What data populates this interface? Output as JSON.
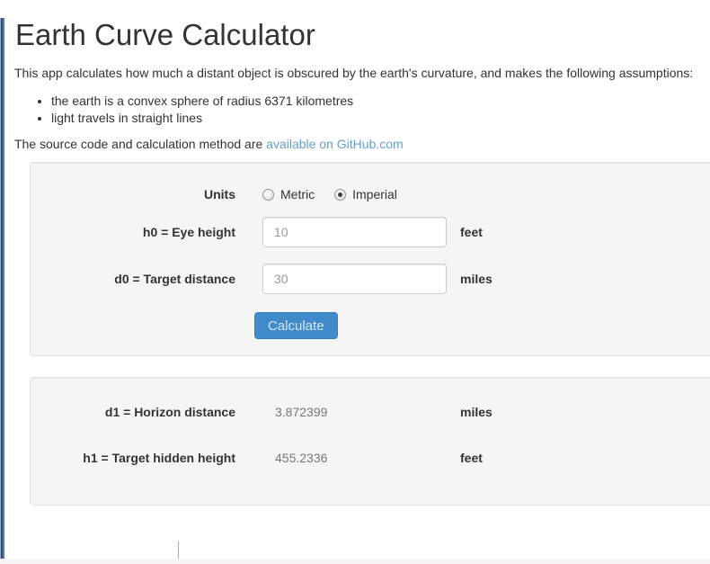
{
  "page": {
    "title": "Earth Curve Calculator",
    "intro": "This app calculates how much a distant object is obscured by the earth's curvature, and makes the following assumptions:",
    "assumptions": [
      "the earth is a convex sphere of radius 6371 kilometres",
      "light travels in straight lines"
    ],
    "source_text": "The source code and calculation method are",
    "source_link": "available on GitHub.com"
  },
  "form": {
    "units": {
      "label": "Units",
      "options": [
        {
          "label": "Metric",
          "selected": false
        },
        {
          "label": "Imperial",
          "selected": true
        }
      ]
    },
    "fields": [
      {
        "label": "h0 = Eye height",
        "value": "10",
        "unit": "feet"
      },
      {
        "label": "d0 = Target distance",
        "value": "30",
        "unit": "miles"
      }
    ],
    "submit_label": "Calculate"
  },
  "results": {
    "rows": [
      {
        "label": "d1 = Horizon distance",
        "value": "3.872399",
        "unit": "miles"
      },
      {
        "label": "h1 = Target hidden height",
        "value": "455.2336",
        "unit": "feet"
      }
    ]
  },
  "colors": {
    "accent": "#428bca",
    "accent_border": "#357ebd",
    "link": "#669fc9",
    "panel_bg": "#f5f5f5",
    "panel_border": "#e3e3e3",
    "edge_blue": "#2e4c7c"
  }
}
